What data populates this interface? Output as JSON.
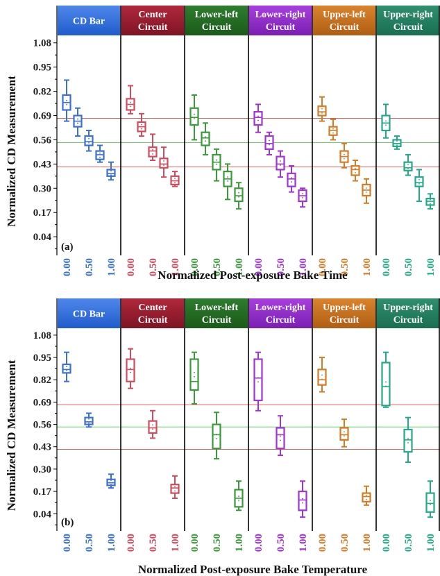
{
  "chart_data": [
    {
      "type": "box",
      "panel_label": "(a)",
      "xlabel": "Normalized Post-exposure Bake Time",
      "ylabel": "Normalized CD Measurement",
      "yticks": [
        "1.08",
        "0.95",
        "0.82",
        "0.69",
        "0.56",
        "0.43",
        "0.30",
        "0.17",
        "0.04"
      ],
      "ylim": [
        -0.06,
        1.12
      ],
      "reference_lines": [
        {
          "y": 0.675,
          "color": "#e06060"
        },
        {
          "y": 0.545,
          "color": "#66cc66"
        },
        {
          "y": 0.415,
          "color": "#e06060"
        }
      ],
      "groups": [
        {
          "name": "CD Bar",
          "color": "#3a6fd8",
          "x_ticks": [
            "0.00",
            "0.50",
            "1.00"
          ],
          "boxes": [
            {
              "x": 0.0,
              "min": 0.66,
              "q1": 0.72,
              "median": 0.76,
              "q3": 0.8,
              "max": 0.88
            },
            {
              "x": 0.25,
              "min": 0.58,
              "q1": 0.63,
              "median": 0.66,
              "q3": 0.69,
              "max": 0.73
            },
            {
              "x": 0.5,
              "min": 0.5,
              "q1": 0.53,
              "median": 0.55,
              "q3": 0.58,
              "max": 0.61
            },
            {
              "x": 0.75,
              "min": 0.44,
              "q1": 0.455,
              "median": 0.48,
              "q3": 0.5,
              "max": 0.53
            },
            {
              "x": 1.0,
              "min": 0.345,
              "q1": 0.365,
              "median": 0.38,
              "q3": 0.4,
              "max": 0.44
            }
          ]
        },
        {
          "name": "Center Circuit",
          "color": "#d24a5c",
          "x_ticks": [
            "0.00",
            "0.50",
            "1.00"
          ],
          "boxes": [
            {
              "x": 0.0,
              "min": 0.7,
              "q1": 0.72,
              "median": 0.75,
              "q3": 0.78,
              "max": 0.85
            },
            {
              "x": 0.25,
              "min": 0.58,
              "q1": 0.605,
              "median": 0.63,
              "q3": 0.655,
              "max": 0.7
            },
            {
              "x": 0.5,
              "min": 0.45,
              "q1": 0.47,
              "median": 0.5,
              "q3": 0.52,
              "max": 0.59
            },
            {
              "x": 0.75,
              "min": 0.36,
              "q1": 0.41,
              "median": 0.43,
              "q3": 0.46,
              "max": 0.52
            },
            {
              "x": 1.0,
              "min": 0.31,
              "q1": 0.32,
              "median": 0.34,
              "q3": 0.365,
              "max": 0.39
            }
          ]
        },
        {
          "name": "Lower-left Circuit",
          "color": "#3a9a3a",
          "x_ticks": [
            "0.00",
            "0.50",
            "1.00"
          ],
          "boxes": [
            {
              "x": 0.0,
              "min": 0.56,
              "q1": 0.64,
              "median": 0.68,
              "q3": 0.73,
              "max": 0.8
            },
            {
              "x": 0.25,
              "min": 0.48,
              "q1": 0.53,
              "median": 0.57,
              "q3": 0.6,
              "max": 0.65
            },
            {
              "x": 0.5,
              "min": 0.34,
              "q1": 0.4,
              "median": 0.44,
              "q3": 0.48,
              "max": 0.51
            },
            {
              "x": 0.75,
              "min": 0.24,
              "q1": 0.31,
              "median": 0.35,
              "q3": 0.39,
              "max": 0.43
            },
            {
              "x": 1.0,
              "min": 0.19,
              "q1": 0.23,
              "median": 0.26,
              "q3": 0.3,
              "max": 0.33
            }
          ]
        },
        {
          "name": "Lower-right Circuit",
          "color": "#a232d6",
          "x_ticks": [
            "0.00",
            "0.50",
            "1.00"
          ],
          "boxes": [
            {
              "x": 0.0,
              "min": 0.6,
              "q1": 0.64,
              "median": 0.68,
              "q3": 0.71,
              "max": 0.75
            },
            {
              "x": 0.25,
              "min": 0.48,
              "q1": 0.51,
              "median": 0.54,
              "q3": 0.58,
              "max": 0.6
            },
            {
              "x": 0.5,
              "min": 0.36,
              "q1": 0.4,
              "median": 0.43,
              "q3": 0.47,
              "max": 0.5
            },
            {
              "x": 0.75,
              "min": 0.28,
              "q1": 0.31,
              "median": 0.35,
              "q3": 0.38,
              "max": 0.42
            },
            {
              "x": 1.0,
              "min": 0.2,
              "q1": 0.23,
              "median": 0.26,
              "q3": 0.29,
              "max": 0.3
            }
          ]
        },
        {
          "name": "Upper-left Circuit",
          "color": "#d67a24",
          "x_ticks": [
            "0.00",
            "0.50",
            "1.00"
          ],
          "boxes": [
            {
              "x": 0.0,
              "min": 0.66,
              "q1": 0.69,
              "median": 0.71,
              "q3": 0.74,
              "max": 0.79
            },
            {
              "x": 0.25,
              "min": 0.56,
              "q1": 0.585,
              "median": 0.61,
              "q3": 0.63,
              "max": 0.67
            },
            {
              "x": 0.5,
              "min": 0.41,
              "q1": 0.44,
              "median": 0.47,
              "q3": 0.5,
              "max": 0.54
            },
            {
              "x": 0.75,
              "min": 0.34,
              "q1": 0.37,
              "median": 0.4,
              "q3": 0.42,
              "max": 0.45
            },
            {
              "x": 1.0,
              "min": 0.22,
              "q1": 0.26,
              "median": 0.29,
              "q3": 0.32,
              "max": 0.35
            }
          ]
        },
        {
          "name": "Upper-right Circuit",
          "color": "#22aa88",
          "x_ticks": [
            "0.00",
            "0.50",
            "1.00"
          ],
          "boxes": [
            {
              "x": 0.0,
              "min": 0.57,
              "q1": 0.61,
              "median": 0.65,
              "q3": 0.69,
              "max": 0.75
            },
            {
              "x": 0.25,
              "min": 0.51,
              "q1": 0.525,
              "median": 0.54,
              "q3": 0.56,
              "max": 0.58
            },
            {
              "x": 0.5,
              "min": 0.37,
              "q1": 0.395,
              "median": 0.41,
              "q3": 0.44,
              "max": 0.48
            },
            {
              "x": 0.75,
              "min": 0.23,
              "q1": 0.31,
              "median": 0.33,
              "q3": 0.36,
              "max": 0.4
            },
            {
              "x": 1.0,
              "min": 0.19,
              "q1": 0.21,
              "median": 0.23,
              "q3": 0.245,
              "max": 0.27
            }
          ]
        }
      ]
    },
    {
      "type": "box",
      "panel_label": "(b)",
      "xlabel": "Normalized Post-exposure Bake Temperature",
      "ylabel": "Normalized CD Measurement",
      "yticks": [
        "1.08",
        "0.95",
        "0.82",
        "0.69",
        "0.56",
        "0.43",
        "0.30",
        "0.17",
        "0.04"
      ],
      "ylim": [
        -0.06,
        1.12
      ],
      "reference_lines": [
        {
          "y": 0.675,
          "color": "#e06060"
        },
        {
          "y": 0.545,
          "color": "#66cc66"
        },
        {
          "y": 0.415,
          "color": "#e06060"
        }
      ],
      "groups": [
        {
          "name": "CD Bar",
          "color": "#3a6fd8",
          "x_ticks": [
            "0.00",
            "0.50",
            "1.00"
          ],
          "boxes": [
            {
              "x": 0.0,
              "min": 0.81,
              "q1": 0.86,
              "median": 0.88,
              "q3": 0.91,
              "max": 0.98
            },
            {
              "x": 0.5,
              "min": 0.545,
              "q1": 0.56,
              "median": 0.575,
              "q3": 0.6,
              "max": 0.625
            },
            {
              "x": 1.0,
              "min": 0.19,
              "q1": 0.205,
              "median": 0.22,
              "q3": 0.24,
              "max": 0.27
            }
          ]
        },
        {
          "name": "Center Circuit",
          "color": "#d24a5c",
          "x_ticks": [
            "0.00",
            "0.50",
            "1.00"
          ],
          "boxes": [
            {
              "x": 0.0,
              "min": 0.77,
              "q1": 0.81,
              "median": 0.88,
              "q3": 0.94,
              "max": 1.0
            },
            {
              "x": 0.5,
              "min": 0.48,
              "q1": 0.51,
              "median": 0.54,
              "q3": 0.58,
              "max": 0.64
            },
            {
              "x": 1.0,
              "min": 0.13,
              "q1": 0.16,
              "median": 0.19,
              "q3": 0.21,
              "max": 0.26
            }
          ]
        },
        {
          "name": "Lower-left Circuit",
          "color": "#3a9a3a",
          "x_ticks": [
            "0.00",
            "0.50",
            "1.00"
          ],
          "boxes": [
            {
              "x": 0.0,
              "min": 0.68,
              "q1": 0.76,
              "median": 0.81,
              "q3": 0.94,
              "max": 0.98
            },
            {
              "x": 0.5,
              "min": 0.36,
              "q1": 0.42,
              "median": 0.5,
              "q3": 0.56,
              "max": 0.63
            },
            {
              "x": 1.0,
              "min": 0.06,
              "q1": 0.08,
              "median": 0.13,
              "q3": 0.18,
              "max": 0.23
            }
          ]
        },
        {
          "name": "Lower-right Circuit",
          "color": "#a232d6",
          "x_ticks": [
            "0.00",
            "0.50",
            "1.00"
          ],
          "boxes": [
            {
              "x": 0.0,
              "min": 0.64,
              "q1": 0.7,
              "median": 0.83,
              "q3": 0.94,
              "max": 0.98
            },
            {
              "x": 0.5,
              "min": 0.38,
              "q1": 0.42,
              "median": 0.5,
              "q3": 0.54,
              "max": 0.61
            },
            {
              "x": 1.0,
              "min": 0.02,
              "q1": 0.06,
              "median": 0.12,
              "q3": 0.17,
              "max": 0.23
            }
          ]
        },
        {
          "name": "Upper-left Circuit",
          "color": "#d67a24",
          "x_ticks": [
            "0.00",
            "0.50",
            "1.00"
          ],
          "boxes": [
            {
              "x": 0.0,
              "min": 0.75,
              "q1": 0.79,
              "median": 0.82,
              "q3": 0.88,
              "max": 0.95
            },
            {
              "x": 0.5,
              "min": 0.43,
              "q1": 0.47,
              "median": 0.5,
              "q3": 0.54,
              "max": 0.59
            },
            {
              "x": 1.0,
              "min": 0.09,
              "q1": 0.11,
              "median": 0.14,
              "q3": 0.16,
              "max": 0.2
            }
          ]
        },
        {
          "name": "Upper-right Circuit",
          "color": "#22aa88",
          "x_ticks": [
            "0.00",
            "0.50",
            "1.00"
          ],
          "boxes": [
            {
              "x": 0.0,
              "min": 0.66,
              "q1": 0.67,
              "median": 0.78,
              "q3": 0.92,
              "max": 0.98
            },
            {
              "x": 0.5,
              "min": 0.34,
              "q1": 0.4,
              "median": 0.47,
              "q3": 0.53,
              "max": 0.6
            },
            {
              "x": 1.0,
              "min": 0.02,
              "q1": 0.05,
              "median": 0.1,
              "q3": 0.16,
              "max": 0.23
            }
          ]
        }
      ]
    }
  ]
}
